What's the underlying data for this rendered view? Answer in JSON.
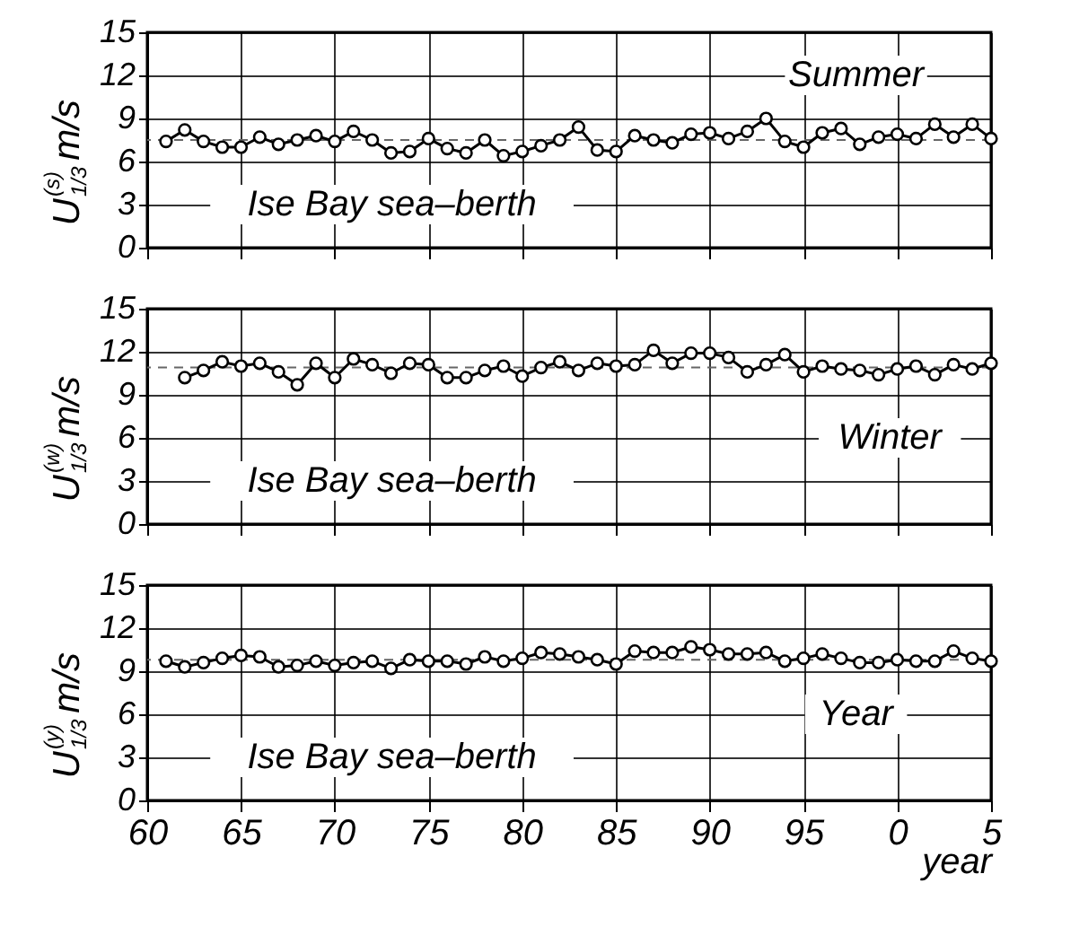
{
  "chart_data": [
    {
      "type": "line",
      "ylabel": "U$_{1/3}$$^{(s)}$ m/s",
      "annotations": [
        "Ise Bay sea–berth",
        "Summer"
      ],
      "xlim": [
        "1960",
        "2005"
      ],
      "xticks": [
        "1960",
        "1965",
        "1970",
        "1975",
        "1980",
        "1985",
        "1990",
        "1995",
        "2000",
        "2005"
      ],
      "ylim": [
        0,
        15
      ],
      "yticks": [
        0,
        3,
        6,
        9,
        12,
        15
      ],
      "tick_labels": "y",
      "grid": true,
      "marker": "circle",
      "line_style": "solid",
      "series": [
        {
          "color": "#000000",
          "x": [
            "1961",
            "1962",
            "1963",
            "1964",
            "1965",
            "1966",
            "1967",
            "1968",
            "1969",
            "1970",
            "1971",
            "1972",
            "1973",
            "1974",
            "1975",
            "1976",
            "1977",
            "1978",
            "1979",
            "1980",
            "1981",
            "1982",
            "1983",
            "1984",
            "1985",
            "1986",
            "1987",
            "1988",
            "1989",
            "1990",
            "1991",
            "1992",
            "1993",
            "1994",
            "1995",
            "1996",
            "1997",
            "1998",
            "1999",
            "2000",
            "2001",
            "2002",
            "2003",
            "2004",
            "2005"
          ],
          "values": [
            7.4,
            8.2,
            7.4,
            7.0,
            7.0,
            7.7,
            7.2,
            7.5,
            7.8,
            7.4,
            8.1,
            7.5,
            6.6,
            6.7,
            7.6,
            6.9,
            6.6,
            7.5,
            6.4,
            6.7,
            7.1,
            7.5,
            8.4,
            6.8,
            6.7,
            7.8,
            7.5,
            7.3,
            7.9,
            8.0,
            7.6,
            8.1,
            9.0,
            7.4,
            7.0,
            8.0,
            8.3,
            7.2,
            7.7,
            7.9,
            7.6,
            8.6,
            7.7,
            8.6,
            7.6
          ]
        }
      ],
      "ref_lines": [
        {
          "axis": "y",
          "value": 7.5,
          "color": "#666666",
          "line_style": "dashed"
        }
      ]
    },
    {
      "type": "line",
      "ylabel": "U$_{1/3}$$^{(w)}$ m/s",
      "annotations": [
        "Ise Bay sea–berth",
        "Winter"
      ],
      "xlim": [
        "1960",
        "2005"
      ],
      "xticks": [
        "1960",
        "1965",
        "1970",
        "1975",
        "1980",
        "1985",
        "1990",
        "1995",
        "2000",
        "2005"
      ],
      "ylim": [
        0,
        15
      ],
      "yticks": [
        0,
        3,
        6,
        9,
        12,
        15
      ],
      "tick_labels": "y",
      "grid": true,
      "marker": "circle",
      "line_style": "solid",
      "series": [
        {
          "color": "#000000",
          "x": [
            "1962",
            "1963",
            "1964",
            "1965",
            "1966",
            "1967",
            "1968",
            "1969",
            "1970",
            "1971",
            "1972",
            "1973",
            "1974",
            "1975",
            "1976",
            "1977",
            "1978",
            "1979",
            "1980",
            "1981",
            "1982",
            "1983",
            "1984",
            "1985",
            "1986",
            "1987",
            "1988",
            "1989",
            "1990",
            "1991",
            "1992",
            "1993",
            "1994",
            "1995",
            "1996",
            "1997",
            "1998",
            "1999",
            "2000",
            "2001",
            "2002",
            "2003",
            "2004",
            "2005"
          ],
          "values": [
            10.2,
            10.7,
            11.3,
            11.0,
            11.2,
            10.6,
            9.7,
            11.2,
            10.2,
            11.5,
            11.1,
            10.5,
            11.2,
            11.1,
            10.2,
            10.2,
            10.7,
            11.0,
            10.3,
            10.9,
            11.3,
            10.7,
            11.2,
            11.0,
            11.1,
            12.1,
            11.2,
            11.9,
            11.9,
            11.6,
            10.6,
            11.1,
            11.8,
            10.6,
            11.0,
            10.8,
            10.7,
            10.4,
            10.8,
            11.0,
            10.4,
            11.1,
            10.8,
            11.2
          ]
        }
      ],
      "ref_lines": [
        {
          "axis": "y",
          "value": 10.9,
          "color": "#666666",
          "line_style": "dashed"
        }
      ]
    },
    {
      "type": "line",
      "ylabel": "U$_{1/3}$$^{(y)}$ m/s",
      "xlabel": "year",
      "annotations": [
        "Ise Bay sea–berth",
        "Year"
      ],
      "xlim": [
        "1960",
        "2005"
      ],
      "xticks": [
        {
          "value": "1960",
          "label": "60"
        },
        {
          "value": "1965",
          "label": "65"
        },
        {
          "value": "1970",
          "label": "70"
        },
        {
          "value": "1975",
          "label": "75"
        },
        {
          "value": "1980",
          "label": "80"
        },
        {
          "value": "1985",
          "label": "85"
        },
        {
          "value": "1990",
          "label": "90"
        },
        {
          "value": "1995",
          "label": "95"
        },
        {
          "value": "2000",
          "label": "0"
        },
        {
          "value": "2005",
          "label": "5"
        }
      ],
      "ylim": [
        0,
        15
      ],
      "yticks": [
        0,
        3,
        6,
        9,
        12,
        15
      ],
      "grid": true,
      "marker": "circle",
      "line_style": "solid",
      "series": [
        {
          "color": "#000000",
          "x": [
            "1961",
            "1962",
            "1963",
            "1964",
            "1965",
            "1966",
            "1967",
            "1968",
            "1969",
            "1970",
            "1971",
            "1972",
            "1973",
            "1974",
            "1975",
            "1976",
            "1977",
            "1978",
            "1979",
            "1980",
            "1981",
            "1982",
            "1983",
            "1984",
            "1985",
            "1986",
            "1987",
            "1988",
            "1989",
            "1990",
            "1991",
            "1992",
            "1993",
            "1994",
            "1995",
            "1996",
            "1997",
            "1998",
            "1999",
            "2000",
            "2001",
            "2002",
            "2003",
            "2004",
            "2005"
          ],
          "values": [
            9.7,
            9.3,
            9.6,
            9.9,
            10.1,
            10.0,
            9.3,
            9.4,
            9.7,
            9.4,
            9.6,
            9.7,
            9.2,
            9.8,
            9.7,
            9.7,
            9.5,
            10.0,
            9.7,
            9.9,
            10.3,
            10.2,
            10.0,
            9.8,
            9.5,
            10.4,
            10.3,
            10.3,
            10.7,
            10.5,
            10.2,
            10.2,
            10.3,
            9.7,
            9.9,
            10.2,
            9.9,
            9.6,
            9.6,
            9.8,
            9.7,
            9.7,
            10.4,
            9.9,
            9.7
          ]
        }
      ],
      "ref_lines": [
        {
          "axis": "y",
          "value": 9.8,
          "color": "#666666",
          "line_style": "dashed"
        }
      ]
    }
  ]
}
